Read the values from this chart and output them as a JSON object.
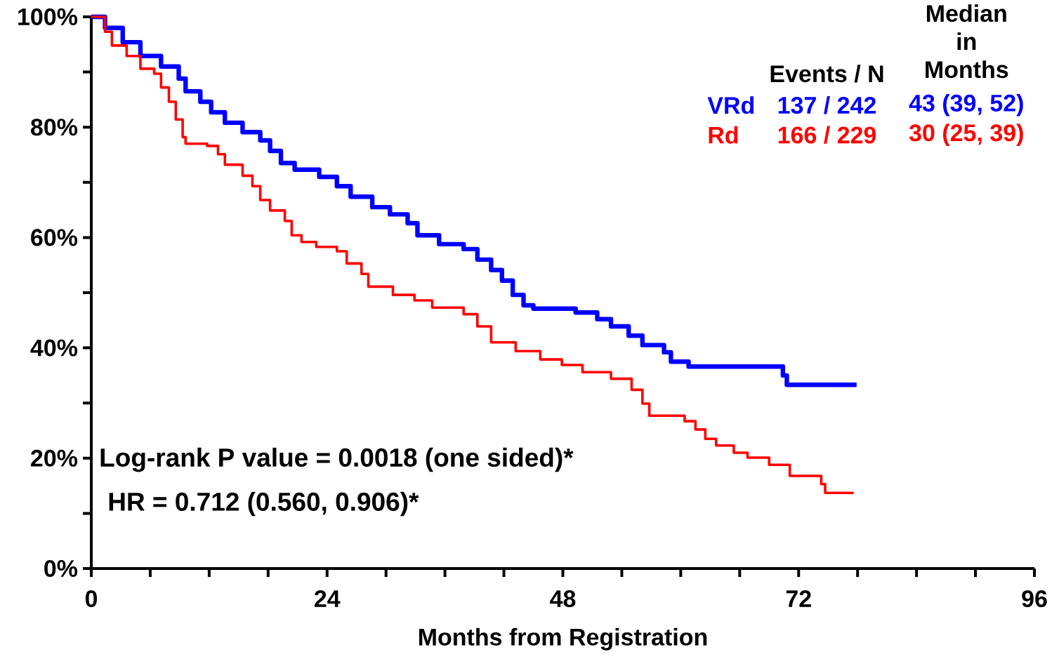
{
  "chart_data": {
    "type": "step",
    "xlabel": "Months from Registration",
    "xlim": [
      0,
      96
    ],
    "xticks": [
      0,
      {
        "value": 6,
        "label": null
      },
      {
        "value": 12,
        "label": null
      },
      {
        "value": 18,
        "label": null
      },
      24,
      {
        "value": 30,
        "label": null
      },
      {
        "value": 36,
        "label": null
      },
      {
        "value": 42,
        "label": null
      },
      48,
      {
        "value": 54,
        "label": null
      },
      {
        "value": 60,
        "label": null
      },
      {
        "value": 66,
        "label": null
      },
      72,
      {
        "value": 78,
        "label": null
      },
      {
        "value": 84,
        "label": null
      },
      {
        "value": 90,
        "label": null
      },
      96
    ],
    "ylim": [
      0,
      100
    ],
    "yticks": [
      {
        "value": 0,
        "label": "0%"
      },
      {
        "value": 10,
        "label": null
      },
      {
        "value": 20,
        "label": "20%"
      },
      {
        "value": 30,
        "label": null
      },
      {
        "value": 40,
        "label": "40%"
      },
      {
        "value": 50,
        "label": null
      },
      {
        "value": 60,
        "label": "60%"
      },
      {
        "value": 70,
        "label": null
      },
      {
        "value": 80,
        "label": "80%"
      },
      {
        "value": 90,
        "label": null
      },
      {
        "value": 100,
        "label": "100%"
      }
    ],
    "legend": "top right",
    "series": [
      {
        "name": "VRd",
        "color": "#0000ff",
        "x": [
          0,
          1.4,
          3.2,
          5,
          7.1,
          8.9,
          9.6,
          11.1,
          12.2,
          13.6,
          15.4,
          17.2,
          18.2,
          19.3,
          20.7,
          23.2,
          25,
          26.4,
          28.6,
          30.4,
          32.2,
          33.2,
          35.4,
          37.9,
          39.3,
          40.7,
          41.8,
          42.9,
          44,
          45,
          49.3,
          51.5,
          52.9,
          54.7,
          56.1,
          58.3,
          59,
          60.8,
          70.4,
          70.8,
          77.9
        ],
        "values": [
          100,
          98,
          95.4,
          92.9,
          91,
          88.8,
          86.5,
          84.6,
          82.7,
          80.8,
          79.1,
          77.6,
          75.7,
          73.5,
          72.3,
          71,
          69.3,
          67.4,
          65.5,
          64.2,
          62.6,
          60.4,
          58.8,
          57.9,
          56,
          54.1,
          52.2,
          49.6,
          47.7,
          47.1,
          46.4,
          45.2,
          43.9,
          42.2,
          40.5,
          39.2,
          37.5,
          36.6,
          35,
          33.3,
          33.3
        ]
      },
      {
        "name": "Rd",
        "color": "#ff0000",
        "x": [
          0,
          1.4,
          2.1,
          3.6,
          5,
          6.4,
          7.1,
          7.9,
          8.6,
          9.3,
          9.6,
          11.8,
          12.9,
          13.6,
          15.4,
          16.4,
          17.2,
          18.2,
          19.7,
          20.4,
          21.4,
          22.9,
          25,
          26,
          27.5,
          28.2,
          30.7,
          32.9,
          34.7,
          37.9,
          39.3,
          40.7,
          43.2,
          45.7,
          47.9,
          50,
          52.9,
          55,
          56.1,
          56.8,
          60.4,
          61.5,
          62.5,
          63.6,
          65.4,
          66.8,
          69,
          71.1,
          74.3,
          74.7,
          77.6
        ],
        "values": [
          100,
          97.3,
          94.8,
          92.9,
          90.6,
          89.7,
          87.2,
          84.6,
          81.4,
          78.2,
          77,
          76.6,
          75.1,
          73.2,
          71.2,
          69.3,
          66.8,
          64.9,
          63,
          60.4,
          59.2,
          58.3,
          57.5,
          55.3,
          53.4,
          51.1,
          49.6,
          48.6,
          47.3,
          46.1,
          43.9,
          41,
          39.4,
          37.9,
          36.9,
          35.6,
          34.4,
          32.4,
          29.9,
          27.7,
          26.7,
          25.2,
          23.5,
          22.3,
          21,
          20.1,
          18.8,
          16.8,
          15.3,
          13.7,
          13.7
        ]
      }
    ],
    "annotations": [
      "Events / N",
      "Median in Months",
      "137 / 242",
      "43 (39, 52)",
      "166 / 229",
      "30 (25, 39)",
      "Log-rank P value = 0.0018 (one sided)*",
      "HR = 0.712 (0.560, 0.906)*"
    ]
  }
}
